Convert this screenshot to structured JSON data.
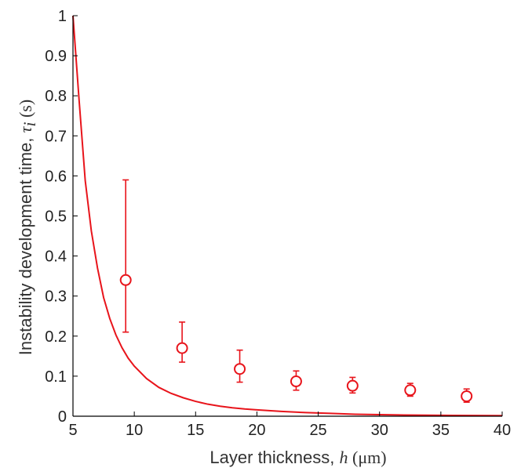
{
  "chart_data": {
    "type": "scatter",
    "xlim": [
      5,
      40
    ],
    "ylim": [
      0,
      1
    ],
    "x_ticks": [
      "5",
      "10",
      "15",
      "20",
      "25",
      "30",
      "35",
      "40"
    ],
    "y_ticks": [
      "0",
      "0.1",
      "0.2",
      "0.3",
      "0.4",
      "0.5",
      "0.6",
      "0.7",
      "0.8",
      "0.9",
      "1"
    ],
    "xlabel": {
      "prefix": "Layer thickness, ",
      "var": "h",
      "unit": " (μm)"
    },
    "ylabel": {
      "prefix": "Instability development time, ",
      "var": "τ",
      "sub": "i",
      "unit": " (s)"
    },
    "grid": false,
    "color": "#e8141b",
    "series": [
      {
        "kind": "points-with-errorbars",
        "points": [
          {
            "x": 9.3,
            "y": 0.34,
            "lo": 0.21,
            "hi": 0.59
          },
          {
            "x": 13.9,
            "y": 0.17,
            "lo": 0.135,
            "hi": 0.235
          },
          {
            "x": 18.6,
            "y": 0.118,
            "lo": 0.085,
            "hi": 0.165
          },
          {
            "x": 23.2,
            "y": 0.087,
            "lo": 0.065,
            "hi": 0.113
          },
          {
            "x": 27.8,
            "y": 0.076,
            "lo": 0.058,
            "hi": 0.097
          },
          {
            "x": 32.5,
            "y": 0.065,
            "lo": 0.05,
            "hi": 0.082
          },
          {
            "x": 37.1,
            "y": 0.05,
            "lo": 0.035,
            "hi": 0.068
          }
        ]
      },
      {
        "kind": "curve",
        "x": [
          5,
          5.5,
          6,
          6.5,
          7,
          7.5,
          8,
          8.5,
          9,
          9.5,
          10,
          11,
          12,
          13,
          14,
          15,
          16,
          17,
          18,
          19,
          20,
          22,
          24,
          26,
          28,
          30,
          32,
          34,
          36,
          38,
          40
        ],
        "y": [
          1.0,
          0.789,
          0.588,
          0.462,
          0.37,
          0.296,
          0.244,
          0.203,
          0.171,
          0.145,
          0.125,
          0.094,
          0.072,
          0.057,
          0.046,
          0.037,
          0.03,
          0.025,
          0.021,
          0.018,
          0.016,
          0.012,
          0.009,
          0.007,
          0.005,
          0.004,
          0.003,
          0.0025,
          0.002,
          0.0017,
          0.0014
        ]
      }
    ]
  }
}
